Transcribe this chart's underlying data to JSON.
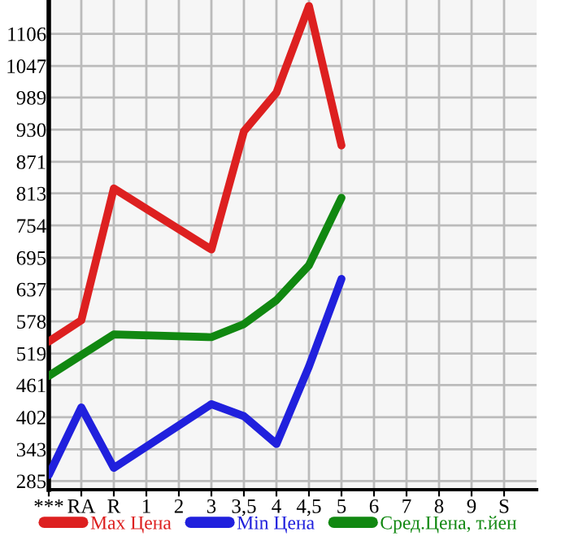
{
  "chart_data": {
    "type": "line",
    "categories": [
      "***",
      "RA",
      "R",
      "1",
      "2",
      "3",
      "3,5",
      "4",
      "4,5",
      "5",
      "6",
      "7",
      "8",
      "9",
      "S"
    ],
    "series": [
      {
        "name": "Max Цена",
        "color": "#dd2020",
        "values": [
          541,
          580,
          822,
          null,
          null,
          710,
          927,
          998,
          1157,
          901,
          null,
          null,
          null,
          null,
          null
        ]
      },
      {
        "name": "Min Цена",
        "color": "#2020dd",
        "values": [
          296,
          420,
          309,
          null,
          null,
          426,
          404,
          353,
          495,
          656,
          null,
          null,
          null,
          null,
          null
        ]
      },
      {
        "name": "Сред.Цена, т.йен",
        "color": "#118811",
        "values": [
          478,
          null,
          554,
          null,
          null,
          549,
          573,
          617,
          681,
          805,
          null,
          null,
          null,
          null,
          null
        ]
      }
    ],
    "ylim": [
      269,
      1168
    ],
    "yticks": [
      285,
      343,
      402,
      461,
      519,
      578,
      637,
      695,
      754,
      813,
      871,
      930,
      989,
      1047,
      1106
    ],
    "grid": true,
    "legend": "bottom",
    "marker": "none",
    "line_style": "solid"
  }
}
